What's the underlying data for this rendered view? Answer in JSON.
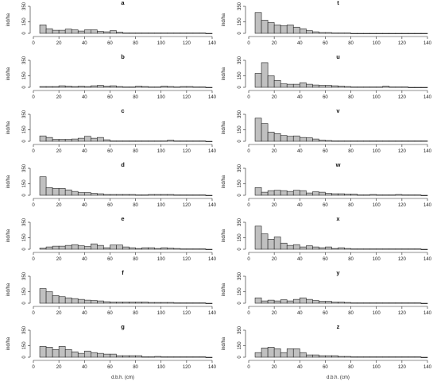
{
  "chart_data": [
    {
      "type": "bar",
      "title": "a",
      "ylabel": "ind/ha",
      "xlabel": "",
      "xlim": [
        0,
        140
      ],
      "ylim": [
        0,
        350
      ],
      "xticks": [
        0,
        20,
        40,
        60,
        80,
        100,
        120,
        140
      ],
      "yticks": [
        0,
        150,
        350
      ],
      "bin_width": 5,
      "bins": [
        5,
        10,
        15,
        20,
        25,
        30,
        35,
        40,
        45,
        50,
        55,
        60,
        65,
        70,
        75,
        80,
        85,
        90,
        95,
        100,
        105,
        110,
        115,
        120,
        125,
        130,
        135
      ],
      "values": [
        110,
        60,
        40,
        40,
        55,
        45,
        30,
        45,
        45,
        25,
        20,
        35,
        15,
        5,
        5,
        5,
        5,
        5,
        5,
        5,
        5,
        5,
        5,
        5,
        5,
        5,
        0
      ]
    },
    {
      "type": "bar",
      "title": "t",
      "ylabel": "ind/ha",
      "xlabel": "",
      "xlim": [
        0,
        140
      ],
      "ylim": [
        0,
        350
      ],
      "xticks": [
        0,
        20,
        40,
        60,
        80,
        100,
        120,
        140
      ],
      "yticks": [
        0,
        150,
        350
      ],
      "bin_width": 5,
      "bins": [
        5,
        10,
        15,
        20,
        25,
        30,
        35,
        40,
        45,
        50,
        55,
        60,
        65,
        70,
        75,
        80,
        85,
        90,
        95,
        100,
        105,
        110,
        115,
        120,
        125,
        130,
        135
      ],
      "values": [
        270,
        170,
        140,
        110,
        100,
        110,
        80,
        60,
        35,
        20,
        10,
        10,
        5,
        5,
        5,
        0,
        0,
        0,
        0,
        0,
        0,
        0,
        0,
        0,
        0,
        0,
        0
      ]
    },
    {
      "type": "bar",
      "title": "b",
      "ylabel": "ind/ha",
      "xlabel": "",
      "xlim": [
        0,
        140
      ],
      "ylim": [
        0,
        350
      ],
      "xticks": [
        0,
        20,
        40,
        60,
        80,
        100,
        120,
        140
      ],
      "yticks": [
        0,
        150,
        350
      ],
      "bin_width": 5,
      "bins": [
        5,
        10,
        15,
        20,
        25,
        30,
        35,
        40,
        45,
        50,
        55,
        60,
        65,
        70,
        75,
        80,
        85,
        90,
        95,
        100,
        105,
        110,
        115,
        120,
        125,
        130,
        135
      ],
      "values": [
        10,
        10,
        10,
        20,
        15,
        10,
        15,
        10,
        20,
        25,
        15,
        20,
        10,
        5,
        5,
        15,
        10,
        5,
        5,
        15,
        10,
        5,
        10,
        10,
        5,
        5,
        0
      ]
    },
    {
      "type": "bar",
      "title": "u",
      "ylabel": "ind/ha",
      "xlabel": "",
      "xlim": [
        0,
        140
      ],
      "ylim": [
        0,
        350
      ],
      "xticks": [
        0,
        20,
        40,
        60,
        80,
        100,
        120,
        140
      ],
      "yticks": [
        0,
        150,
        350
      ],
      "bin_width": 5,
      "bins": [
        5,
        10,
        15,
        20,
        25,
        30,
        35,
        40,
        45,
        50,
        55,
        60,
        65,
        70,
        75,
        80,
        85,
        90,
        95,
        100,
        105,
        110,
        115,
        120,
        125,
        130,
        135
      ],
      "values": [
        180,
        320,
        150,
        90,
        45,
        40,
        40,
        60,
        40,
        30,
        25,
        25,
        20,
        15,
        10,
        5,
        5,
        5,
        5,
        5,
        15,
        5,
        5,
        5,
        0,
        0,
        0
      ]
    },
    {
      "type": "bar",
      "title": "c",
      "ylabel": "ind/ha",
      "xlabel": "",
      "xlim": [
        0,
        140
      ],
      "ylim": [
        0,
        350
      ],
      "xticks": [
        0,
        20,
        40,
        60,
        80,
        100,
        120,
        140
      ],
      "yticks": [
        0,
        150,
        350
      ],
      "bin_width": 5,
      "bins": [
        5,
        10,
        15,
        20,
        25,
        30,
        35,
        40,
        45,
        50,
        55,
        60,
        65,
        70,
        75,
        80,
        85,
        90,
        95,
        100,
        105,
        110,
        115,
        120,
        125,
        130,
        135
      ],
      "values": [
        70,
        50,
        25,
        25,
        25,
        30,
        40,
        65,
        40,
        50,
        20,
        5,
        5,
        5,
        5,
        5,
        5,
        5,
        5,
        5,
        15,
        5,
        5,
        5,
        5,
        5,
        0
      ]
    },
    {
      "type": "bar",
      "title": "v",
      "ylabel": "ind/ha",
      "xlabel": "",
      "xlim": [
        0,
        140
      ],
      "ylim": [
        0,
        350
      ],
      "xticks": [
        0,
        20,
        40,
        60,
        80,
        100,
        120,
        140
      ],
      "yticks": [
        0,
        150,
        350
      ],
      "bin_width": 5,
      "bins": [
        5,
        10,
        15,
        20,
        25,
        30,
        35,
        40,
        45,
        50,
        55,
        60,
        65,
        70,
        75,
        80,
        85,
        90,
        95,
        100,
        105,
        110,
        115,
        120,
        125,
        130,
        135
      ],
      "values": [
        300,
        230,
        120,
        100,
        75,
        65,
        70,
        50,
        45,
        30,
        15,
        10,
        5,
        5,
        5,
        5,
        5,
        5,
        5,
        5,
        5,
        5,
        5,
        5,
        5,
        5,
        5
      ]
    },
    {
      "type": "bar",
      "title": "d",
      "ylabel": "ind/ha",
      "xlabel": "",
      "xlim": [
        0,
        140
      ],
      "ylim": [
        0,
        350
      ],
      "xticks": [
        0,
        20,
        40,
        60,
        80,
        100,
        120,
        140
      ],
      "yticks": [
        0,
        150,
        350
      ],
      "bin_width": 5,
      "bins": [
        5,
        10,
        15,
        20,
        25,
        30,
        35,
        40,
        45,
        50,
        55,
        60,
        65,
        70,
        75,
        80,
        85,
        90,
        95,
        100,
        105,
        110,
        115,
        120,
        125,
        130,
        135
      ],
      "values": [
        240,
        100,
        90,
        90,
        70,
        50,
        35,
        35,
        25,
        20,
        10,
        10,
        10,
        10,
        10,
        5,
        5,
        10,
        10,
        10,
        10,
        5,
        5,
        5,
        5,
        5,
        0
      ]
    },
    {
      "type": "bar",
      "title": "w",
      "ylabel": "ind/ha",
      "xlabel": "",
      "xlim": [
        0,
        140
      ],
      "ylim": [
        0,
        350
      ],
      "xticks": [
        0,
        20,
        40,
        60,
        80,
        100,
        120,
        140
      ],
      "yticks": [
        0,
        150,
        350
      ],
      "bin_width": 5,
      "bins": [
        5,
        10,
        15,
        20,
        25,
        30,
        35,
        40,
        45,
        50,
        55,
        60,
        65,
        70,
        75,
        80,
        85,
        90,
        95,
        100,
        105,
        110,
        115,
        120,
        125,
        130,
        135
      ],
      "values": [
        100,
        40,
        60,
        65,
        60,
        50,
        65,
        60,
        30,
        45,
        40,
        25,
        20,
        20,
        15,
        15,
        5,
        5,
        10,
        5,
        5,
        5,
        10,
        5,
        5,
        5,
        0
      ]
    },
    {
      "type": "bar",
      "title": "e",
      "ylabel": "ind/ha",
      "xlabel": "",
      "xlim": [
        0,
        140
      ],
      "ylim": [
        0,
        350
      ],
      "xticks": [
        0,
        20,
        40,
        60,
        80,
        100,
        120,
        140
      ],
      "yticks": [
        0,
        150,
        350
      ],
      "bin_width": 5,
      "bins": [
        5,
        10,
        15,
        20,
        25,
        30,
        35,
        40,
        45,
        50,
        55,
        60,
        65,
        70,
        75,
        80,
        85,
        90,
        95,
        100,
        105,
        110,
        115,
        120,
        125,
        130,
        135
      ],
      "values": [
        15,
        30,
        40,
        40,
        50,
        60,
        45,
        35,
        70,
        50,
        20,
        55,
        55,
        30,
        20,
        10,
        20,
        20,
        10,
        20,
        15,
        10,
        5,
        5,
        5,
        5,
        0
      ]
    },
    {
      "type": "bar",
      "title": "x",
      "ylabel": "ind/ha",
      "xlabel": "",
      "xlim": [
        0,
        140
      ],
      "ylim": [
        0,
        350
      ],
      "xticks": [
        0,
        20,
        40,
        60,
        80,
        100,
        120,
        140
      ],
      "yticks": [
        0,
        150,
        350
      ],
      "bin_width": 5,
      "bins": [
        5,
        10,
        15,
        20,
        25,
        30,
        35,
        40,
        45,
        50,
        55,
        60,
        65,
        70,
        75,
        80,
        85,
        90,
        95,
        100,
        105,
        110,
        115,
        120,
        125,
        130,
        135
      ],
      "values": [
        300,
        200,
        130,
        160,
        80,
        50,
        60,
        30,
        45,
        30,
        20,
        30,
        10,
        20,
        10,
        5,
        5,
        5,
        5,
        5,
        5,
        5,
        5,
        5,
        5,
        5,
        0
      ]
    },
    {
      "type": "bar",
      "title": "f",
      "ylabel": "ind/ha",
      "xlabel": "",
      "xlim": [
        0,
        140
      ],
      "ylim": [
        0,
        350
      ],
      "xticks": [
        0,
        20,
        40,
        60,
        80,
        100,
        120,
        140
      ],
      "yticks": [
        0,
        150,
        350
      ],
      "bin_width": 5,
      "bins": [
        5,
        10,
        15,
        20,
        25,
        30,
        35,
        40,
        45,
        50,
        55,
        60,
        65,
        70,
        75,
        80,
        85,
        90,
        95,
        100,
        105,
        110,
        115,
        120,
        125,
        130,
        135
      ],
      "values": [
        190,
        150,
        100,
        85,
        70,
        60,
        50,
        40,
        35,
        30,
        20,
        15,
        15,
        15,
        15,
        15,
        15,
        10,
        10,
        10,
        10,
        5,
        5,
        5,
        5,
        5,
        0
      ]
    },
    {
      "type": "bar",
      "title": "y",
      "ylabel": "ind/ha",
      "xlabel": "",
      "xlim": [
        0,
        140
      ],
      "ylim": [
        0,
        350
      ],
      "xticks": [
        0,
        20,
        40,
        60,
        80,
        100,
        120,
        140
      ],
      "yticks": [
        0,
        150,
        350
      ],
      "bin_width": 5,
      "bins": [
        5,
        10,
        15,
        20,
        25,
        30,
        35,
        40,
        45,
        50,
        55,
        60,
        65,
        70,
        75,
        80,
        85,
        90,
        95,
        100,
        105,
        110,
        115,
        120,
        125,
        130,
        135
      ],
      "values": [
        70,
        30,
        40,
        30,
        45,
        30,
        50,
        70,
        50,
        35,
        25,
        25,
        15,
        15,
        10,
        5,
        5,
        5,
        5,
        5,
        5,
        5,
        5,
        5,
        5,
        5,
        0
      ]
    },
    {
      "type": "bar",
      "title": "g",
      "ylabel": "ind/ha",
      "xlabel": "d.b.h. (cm)",
      "xlim": [
        0,
        140
      ],
      "ylim": [
        0,
        350
      ],
      "xticks": [
        0,
        20,
        40,
        60,
        80,
        100,
        120,
        140
      ],
      "yticks": [
        0,
        150,
        350
      ],
      "bin_width": 5,
      "bins": [
        5,
        10,
        15,
        20,
        25,
        30,
        35,
        40,
        45,
        50,
        55,
        60,
        65,
        70,
        75,
        80,
        85,
        90,
        95,
        100,
        105,
        110,
        115,
        120,
        125,
        130,
        135
      ],
      "values": [
        140,
        130,
        100,
        140,
        100,
        70,
        50,
        80,
        60,
        50,
        40,
        40,
        20,
        20,
        20,
        20,
        5,
        5,
        10,
        5,
        5,
        5,
        5,
        5,
        5,
        5,
        0
      ]
    },
    {
      "type": "bar",
      "title": "z",
      "ylabel": "ind/ha",
      "xlabel": "d.b.h. (cm)",
      "xlim": [
        0,
        140
      ],
      "ylim": [
        0,
        350
      ],
      "xticks": [
        0,
        20,
        40,
        60,
        80,
        100,
        120,
        140
      ],
      "yticks": [
        0,
        150,
        350
      ],
      "bin_width": 5,
      "bins": [
        5,
        10,
        15,
        20,
        25,
        30,
        35,
        40,
        45,
        50,
        55,
        60,
        65,
        70,
        75,
        80,
        85,
        90,
        95,
        100,
        105,
        110,
        115,
        120,
        125,
        130,
        135
      ],
      "values": [
        60,
        120,
        130,
        110,
        60,
        110,
        110,
        60,
        30,
        30,
        20,
        20,
        20,
        10,
        10,
        5,
        5,
        5,
        5,
        5,
        5,
        5,
        5,
        5,
        5,
        5,
        0
      ]
    }
  ],
  "colors": {
    "bar_fill": "#c0c0c0",
    "bar_stroke": "#222222",
    "axis": "#222222",
    "background": "#ffffff"
  }
}
